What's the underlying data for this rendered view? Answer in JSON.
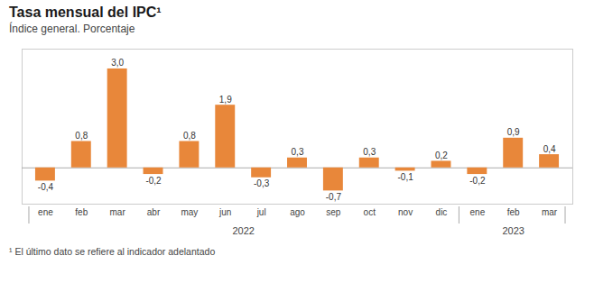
{
  "chart_data": {
    "type": "bar",
    "title": "Tasa mensual del IPC¹",
    "subtitle": "Índice general. Porcentaje",
    "footnote": "¹ El último dato se refiere al indicador adelantado",
    "categories": [
      "ene",
      "feb",
      "mar",
      "abr",
      "may",
      "jun",
      "jul",
      "ago",
      "sep",
      "oct",
      "nov",
      "dic",
      "ene",
      "feb",
      "mar"
    ],
    "values": [
      -0.4,
      0.8,
      3.0,
      -0.2,
      0.8,
      1.9,
      -0.3,
      0.3,
      -0.7,
      0.3,
      -0.1,
      0.2,
      -0.2,
      0.9,
      0.4
    ],
    "value_labels": [
      "-0,4",
      "0,8",
      "3,0",
      "-0,2",
      "0,8",
      "1,9",
      "-0,3",
      "0,3",
      "-0,7",
      "0,3",
      "-0,1",
      "0,2",
      "-0,2",
      "0,9",
      "0,4"
    ],
    "category_groups": [
      {
        "label": "2022",
        "count": 12
      },
      {
        "label": "2023",
        "count": 3
      }
    ],
    "color": "#E8873A",
    "ylim": [
      -1.1,
      3.6
    ],
    "data_labels": true,
    "grid": false,
    "tick_labels": "x"
  }
}
